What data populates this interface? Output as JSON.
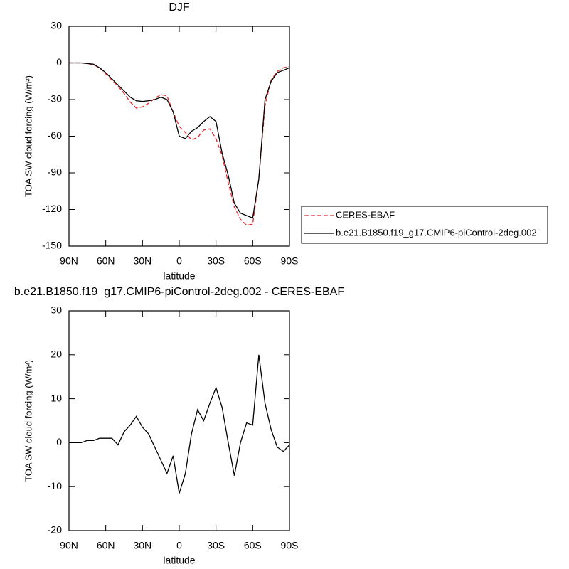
{
  "chart_data": [
    {
      "type": "line",
      "title": "DJF",
      "x_label": "latitude",
      "y_label": "TOA SW cloud forcing (W/m²)",
      "x": [
        90,
        85,
        80,
        75,
        70,
        65,
        60,
        55,
        50,
        45,
        40,
        35,
        30,
        25,
        20,
        15,
        10,
        5,
        0,
        -5,
        -10,
        -15,
        -20,
        -25,
        -30,
        -35,
        -40,
        -45,
        -50,
        -55,
        -60,
        -65,
        -70,
        -75,
        -80,
        -85,
        -90
      ],
      "series": [
        {
          "name": "CERES-EBAF",
          "color": "#e8282b",
          "dash": true,
          "values": [
            0,
            0,
            0,
            -0.5,
            -1.5,
            -4,
            -9,
            -14,
            -19,
            -25,
            -32,
            -37,
            -36,
            -33,
            -29,
            -26,
            -27,
            -40,
            -52,
            -57,
            -63,
            -61,
            -55,
            -54,
            -62,
            -76,
            -98,
            -118,
            -128,
            -133,
            -132,
            -95,
            -35,
            -14,
            -7,
            -4,
            -3
          ]
        },
        {
          "name": "b.e21.B1850.f19_g17.CMIP6-piControl-2deg.002",
          "color": "#000000",
          "dash": false,
          "values": [
            0,
            0,
            0,
            -0.5,
            -1,
            -4,
            -8,
            -13,
            -18,
            -23,
            -28,
            -31,
            -31.5,
            -31,
            -30,
            -28,
            -30,
            -40,
            -60,
            -62,
            -56,
            -53,
            -48,
            -44,
            -48,
            -74,
            -92,
            -115,
            -123,
            -125,
            -127,
            -95,
            -30,
            -15,
            -8,
            -6,
            -4
          ]
        }
      ],
      "xlim": [
        90,
        -90
      ],
      "xticks": [
        {
          "value": 90,
          "label": "90N"
        },
        {
          "value": 60,
          "label": "60N"
        },
        {
          "value": 30,
          "label": "30N"
        },
        0,
        {
          "value": -30,
          "label": "30S"
        },
        {
          "value": -60,
          "label": "60S"
        },
        {
          "value": -90,
          "label": "90S"
        }
      ],
      "ylim": [
        -150,
        30
      ],
      "yticks": [
        -150,
        -120,
        -90,
        -60,
        -30,
        0,
        30
      ],
      "legend": "right"
    },
    {
      "type": "line",
      "title": "b.e21.B1850.f19_g17.CMIP6-piControl-2deg.002 - CERES-EBAF",
      "x_label": "latitude",
      "y_label": "TOA SW cloud forcing (W/m²)",
      "x": [
        90,
        85,
        80,
        75,
        70,
        65,
        60,
        55,
        50,
        45,
        40,
        35,
        30,
        25,
        20,
        15,
        10,
        5,
        0,
        -5,
        -10,
        -15,
        -20,
        -25,
        -30,
        -35,
        -40,
        -45,
        -50,
        -55,
        -60,
        -65,
        -70,
        -75,
        -80,
        -85,
        -90
      ],
      "series": [
        {
          "color": "#000000",
          "dash": false,
          "values": [
            0,
            0,
            0,
            0.5,
            0.5,
            1,
            1,
            1,
            -0.5,
            2.5,
            4,
            6,
            3.5,
            2,
            -1,
            -4,
            -7,
            -3,
            -11.5,
            -7,
            2,
            7.5,
            5,
            9,
            12.5,
            8,
            0,
            -7.5,
            0,
            4.5,
            4,
            20,
            9,
            3,
            -1,
            -2,
            -0.5
          ]
        }
      ],
      "xlim": [
        90,
        -90
      ],
      "xticks": [
        {
          "value": 90,
          "label": "90N"
        },
        {
          "value": 60,
          "label": "60N"
        },
        {
          "value": 30,
          "label": "30N"
        },
        0,
        {
          "value": -30,
          "label": "30S"
        },
        {
          "value": -60,
          "label": "60S"
        },
        {
          "value": -90,
          "label": "90S"
        }
      ],
      "ylim": [
        -20,
        30
      ],
      "yticks": [
        -20,
        -10,
        0,
        10,
        20,
        30
      ]
    }
  ]
}
